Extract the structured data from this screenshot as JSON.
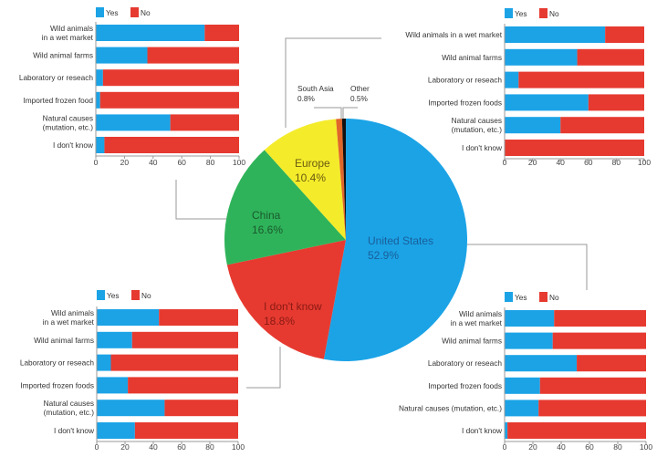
{
  "colors": {
    "yes": "#1ba3e6",
    "no": "#e63a30",
    "axis": "#999999",
    "connector": "#9a9a9a"
  },
  "chart_data": [
    {
      "type": "pie",
      "slices": [
        {
          "label": "United States",
          "value": 52.9,
          "text": "52.9%",
          "color": "#1ba3e6",
          "label_color": "#1a5f9a"
        },
        {
          "label": "I don't know",
          "value": 18.8,
          "text": "18.8%",
          "color": "#e63a30",
          "label_color": "#8a1a14"
        },
        {
          "label": "China",
          "value": 16.6,
          "text": "16.6%",
          "color": "#2fb35a",
          "label_color": "#1a5a2e"
        },
        {
          "label": "Europe",
          "value": 10.4,
          "text": "10.4%",
          "color": "#f4ec2a",
          "label_color": "#6a5a10"
        },
        {
          "label": "South Asia",
          "value": 0.8,
          "text": "0.8%",
          "color": "#e0662a",
          "label_color": "#333333"
        },
        {
          "label": "Other",
          "value": 0.5,
          "text": "0.5%",
          "color": "#111111",
          "label_color": "#333333"
        }
      ]
    },
    {
      "type": "bar",
      "orientation": "horizontal",
      "stacked": true,
      "linked_slice": "China",
      "legend": [
        "Yes",
        "No"
      ],
      "legend_position": "top",
      "categories": [
        [
          "Wild animals",
          "in a wet market"
        ],
        [
          "Wild animal farms"
        ],
        [
          "Laboratory or reseach"
        ],
        [
          "Imported frozen food"
        ],
        [
          "Natural causes",
          "(mutation, etc.)"
        ],
        [
          "I don't know"
        ]
      ],
      "series": [
        {
          "name": "Yes",
          "values": [
            76,
            36,
            5,
            3,
            52,
            6
          ]
        },
        {
          "name": "No",
          "values": [
            24,
            64,
            95,
            97,
            48,
            94
          ]
        }
      ],
      "xlim": [
        0,
        100
      ],
      "xticks": [
        "0",
        "20",
        "40",
        "60",
        "80",
        "100"
      ]
    },
    {
      "type": "bar",
      "orientation": "horizontal",
      "stacked": true,
      "linked_slice": "Europe",
      "legend": [
        "Yes",
        "No"
      ],
      "legend_position": "top",
      "categories": [
        [
          "Wild animals in a wet market"
        ],
        [
          "Wild animal farms"
        ],
        [
          "Laboratory or reseach"
        ],
        [
          "Imported frozen foods"
        ],
        [
          "Natural causes",
          "(mutation, etc.)"
        ],
        [
          "I don't know"
        ]
      ],
      "series": [
        {
          "name": "Yes",
          "values": [
            72,
            52,
            10,
            60,
            40,
            0
          ]
        },
        {
          "name": "No",
          "values": [
            28,
            48,
            90,
            40,
            60,
            100
          ]
        }
      ],
      "xlim": [
        0,
        100
      ],
      "xticks": [
        "0",
        "20",
        "40",
        "60",
        "80",
        "100"
      ]
    },
    {
      "type": "bar",
      "orientation": "horizontal",
      "stacked": true,
      "linked_slice": "I don't know",
      "legend": [
        "Yes",
        "No"
      ],
      "legend_position": "top",
      "categories": [
        [
          "Wild animals",
          "in a wet market"
        ],
        [
          "Wild animal farms"
        ],
        [
          "Laboratory or reseach"
        ],
        [
          "Imported frozen foods"
        ],
        [
          "Natural causes",
          "(mutation, etc.)"
        ],
        [
          "I don't know"
        ]
      ],
      "series": [
        {
          "name": "Yes",
          "values": [
            44,
            25,
            10,
            22,
            48,
            27
          ]
        },
        {
          "name": "No",
          "values": [
            56,
            75,
            90,
            78,
            52,
            73
          ]
        }
      ],
      "xlim": [
        0,
        100
      ],
      "xticks": [
        "0",
        "20",
        "40",
        "60",
        "80",
        "100"
      ]
    },
    {
      "type": "bar",
      "orientation": "horizontal",
      "stacked": true,
      "linked_slice": "United States",
      "legend": [
        "Yes",
        "No"
      ],
      "legend_position": "top",
      "categories": [
        [
          "Wild animals",
          "in a wet market"
        ],
        [
          "Wild animal farms"
        ],
        [
          "Laboratory or reseach"
        ],
        [
          "Imported frozen foods"
        ],
        [
          "Natural causes (mutation, etc.)"
        ],
        [
          "I don't know"
        ]
      ],
      "series": [
        {
          "name": "Yes",
          "values": [
            35,
            34,
            51,
            25,
            24,
            2
          ]
        },
        {
          "name": "No",
          "values": [
            65,
            66,
            49,
            75,
            76,
            98
          ]
        }
      ],
      "xlim": [
        0,
        100
      ],
      "xticks": [
        "0",
        "20",
        "40",
        "60",
        "80",
        "100"
      ]
    }
  ]
}
